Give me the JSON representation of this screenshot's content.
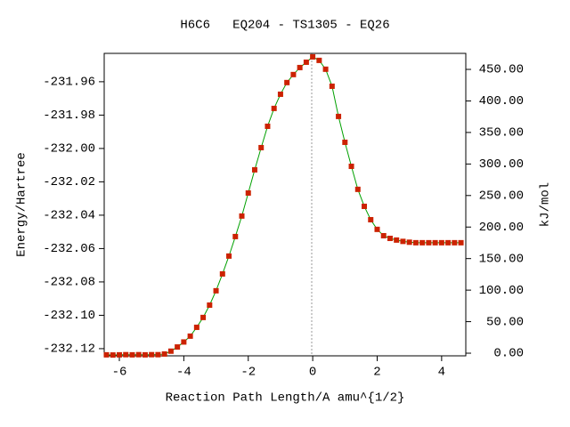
{
  "chart_data": {
    "type": "line",
    "title": "H6C6   EQ204 - TS1305 - EQ26",
    "x_label": "Reaction Path Length/A amu^{1/2}",
    "y_label": "Energy/Hartree",
    "y2_label": "kJ/mol",
    "x": [
      -6.4,
      -6.2,
      -6.0,
      -5.8,
      -5.6,
      -5.4,
      -5.2,
      -5.0,
      -4.8,
      -4.6,
      -4.4,
      -4.2,
      -4.0,
      -3.8,
      -3.6,
      -3.4,
      -3.2,
      -3.0,
      -2.8,
      -2.6,
      -2.4,
      -2.2,
      -2.0,
      -1.8,
      -1.6,
      -1.4,
      -1.2,
      -1.0,
      -0.8,
      -0.6,
      -0.4,
      -0.2,
      0,
      0.2,
      0.4,
      0.6,
      0.8,
      1.0,
      1.2,
      1.4,
      1.6,
      1.8,
      2.0,
      2.2,
      2.4,
      2.6,
      2.8,
      3.0,
      3.2,
      3.4,
      3.6,
      3.8,
      4.0,
      4.2,
      4.4,
      4.6
    ],
    "series": [
      {
        "color": "#00a000",
        "marker_color": "#cc2200",
        "values": [
          -232.1237,
          -232.1238,
          -232.1237,
          -232.1236,
          -232.1237,
          -232.1236,
          -232.1237,
          -232.1236,
          -232.1236,
          -232.1232,
          -232.1215,
          -232.119,
          -232.116,
          -232.1125,
          -232.1072,
          -232.1013,
          -232.0939,
          -232.0853,
          -232.0752,
          -232.0645,
          -232.0528,
          -232.0405,
          -232.0267,
          -232.0128,
          -231.9995,
          -231.9867,
          -231.976,
          -231.9675,
          -231.9605,
          -231.9557,
          -231.9515,
          -231.9483,
          -231.9451,
          -231.9472,
          -231.9525,
          -231.9627,
          -231.9808,
          -231.9963,
          -232.0107,
          -232.0245,
          -232.0347,
          -232.0427,
          -232.0485,
          -232.0523,
          -232.0539,
          -232.0549,
          -232.0557,
          -232.0562,
          -232.0565,
          -232.0565,
          -232.0565,
          -232.0565,
          -232.0565,
          -232.0565,
          -232.0565,
          -232.0565
        ]
      }
    ],
    "xlim": [
      -6.47,
      4.75
    ],
    "xticks": [
      -6,
      -4,
      -2,
      0,
      2,
      4
    ],
    "ylim": [
      -232.1243,
      -231.943
    ],
    "yticks": [
      -231.96,
      -231.98,
      {
        "value": -232.0,
        "label": "-232.00"
      },
      -232.02,
      -232.04,
      -232.06,
      -232.08,
      {
        "value": -232.1,
        "label": "-232.10"
      },
      -232.12
    ],
    "y2lim": [
      -4.2,
      475.4
    ],
    "y2ticks": [
      {
        "value": 0,
        "label": "0.00"
      },
      {
        "value": 50,
        "label": "50.00"
      },
      {
        "value": 100,
        "label": "100.00"
      },
      {
        "value": 150,
        "label": "150.00"
      },
      {
        "value": 200,
        "label": "200.00"
      },
      {
        "value": 250,
        "label": "250.00"
      },
      {
        "value": 300,
        "label": "300.00"
      },
      {
        "value": 350,
        "label": "350.00"
      },
      {
        "value": 400,
        "label": "400.00"
      },
      {
        "value": 450,
        "label": "450.00"
      }
    ]
  }
}
